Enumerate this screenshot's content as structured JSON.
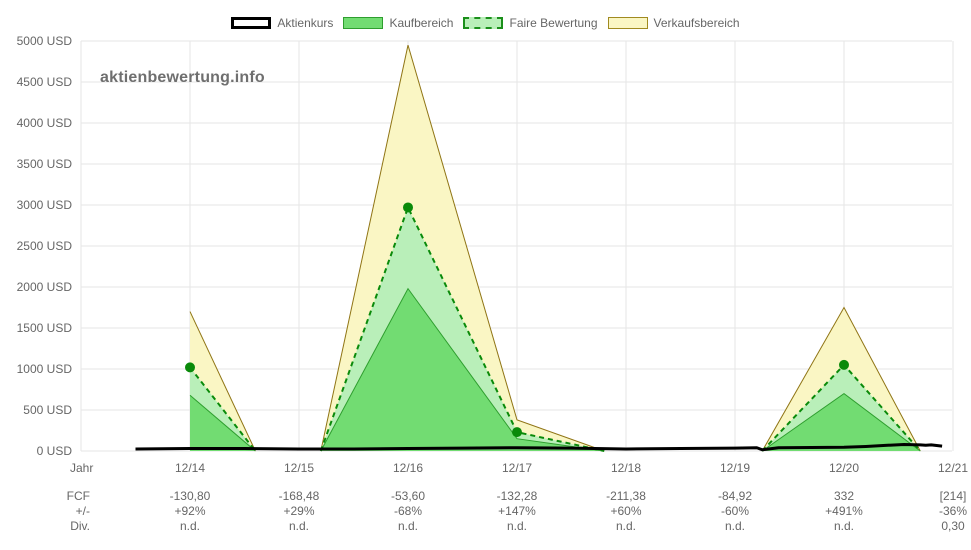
{
  "legend": {
    "price": "Aktienkurs",
    "buy": "Kaufbereich",
    "fair": "Faire Bewertung",
    "sell": "Verkaufsbereich"
  },
  "watermark": "aktienbewertung.info",
  "colors": {
    "buy_fill": "#72dc72",
    "buy_line": "#2e9e2e",
    "fair_fill": "#b9efb9",
    "fair_line": "#0a8a0a",
    "sell_fill": "#faf6c4",
    "sell_line": "#8f7414",
    "price_line": "#000000",
    "grid": "#e6e6e6"
  },
  "chart_data": {
    "type": "area",
    "ylim": [
      0,
      5000
    ],
    "y_ticks": [
      0,
      500,
      1000,
      1500,
      2000,
      2500,
      3000,
      3500,
      4000,
      4500,
      5000
    ],
    "y_unit": "USD",
    "x_label": "Jahr",
    "categories": [
      "12/14",
      "12/15",
      "12/16",
      "12/17",
      "12/18",
      "12/19",
      "12/20",
      "12/21"
    ],
    "segments": [
      {
        "points": [
          {
            "x": 0,
            "sell": 1700,
            "fair": 1020,
            "buy": 680
          },
          {
            "x": 0.6,
            "sell": 0,
            "fair": 0,
            "buy": 0
          }
        ]
      },
      {
        "points": [
          {
            "x": 1.2,
            "sell": 0,
            "fair": 0,
            "buy": 0
          },
          {
            "x": 2,
            "sell": 4950,
            "fair": 2970,
            "buy": 1980
          },
          {
            "x": 3,
            "sell": 380,
            "fair": 230,
            "buy": 150
          },
          {
            "x": 3.8,
            "sell": 0,
            "fair": 0,
            "buy": 0
          }
        ]
      },
      {
        "points": [
          {
            "x": 5.25,
            "sell": 0,
            "fair": 0,
            "buy": 0
          },
          {
            "x": 6,
            "sell": 1750,
            "fair": 1050,
            "buy": 700
          },
          {
            "x": 6.7,
            "sell": 0,
            "fair": 0,
            "buy": 0
          }
        ]
      }
    ],
    "fair_markers": [
      {
        "x": 0,
        "y": 1020
      },
      {
        "x": 2,
        "y": 2970
      },
      {
        "x": 3,
        "y": 230
      },
      {
        "x": 6,
        "y": 1050
      }
    ],
    "price": [
      [
        -0.5,
        25
      ],
      [
        0,
        30
      ],
      [
        0.5,
        30
      ],
      [
        1,
        25
      ],
      [
        1.5,
        25
      ],
      [
        2,
        30
      ],
      [
        2.5,
        35
      ],
      [
        3,
        40
      ],
      [
        3.5,
        35
      ],
      [
        4,
        25
      ],
      [
        4.5,
        30
      ],
      [
        5,
        35
      ],
      [
        5.2,
        40
      ],
      [
        5.25,
        15
      ],
      [
        5.4,
        40
      ],
      [
        6,
        45
      ],
      [
        6.2,
        55
      ],
      [
        6.4,
        70
      ],
      [
        6.55,
        80
      ],
      [
        6.7,
        75
      ],
      [
        6.75,
        70
      ],
      [
        6.8,
        75
      ],
      [
        6.9,
        60
      ]
    ],
    "table": {
      "row_labels": [
        "FCF",
        "+/-",
        "Div."
      ],
      "columns": [
        [
          "-130,80",
          "+92%",
          "n.d."
        ],
        [
          "-168,48",
          "+29%",
          "n.d."
        ],
        [
          "-53,60",
          "-68%",
          "n.d."
        ],
        [
          "-132,28",
          "+147%",
          "n.d."
        ],
        [
          "-211,38",
          "+60%",
          "n.d."
        ],
        [
          "-84,92",
          "-60%",
          "n.d."
        ],
        [
          "332",
          "+491%",
          "n.d."
        ],
        [
          "[214]",
          "-36%",
          "0,30"
        ]
      ]
    }
  }
}
